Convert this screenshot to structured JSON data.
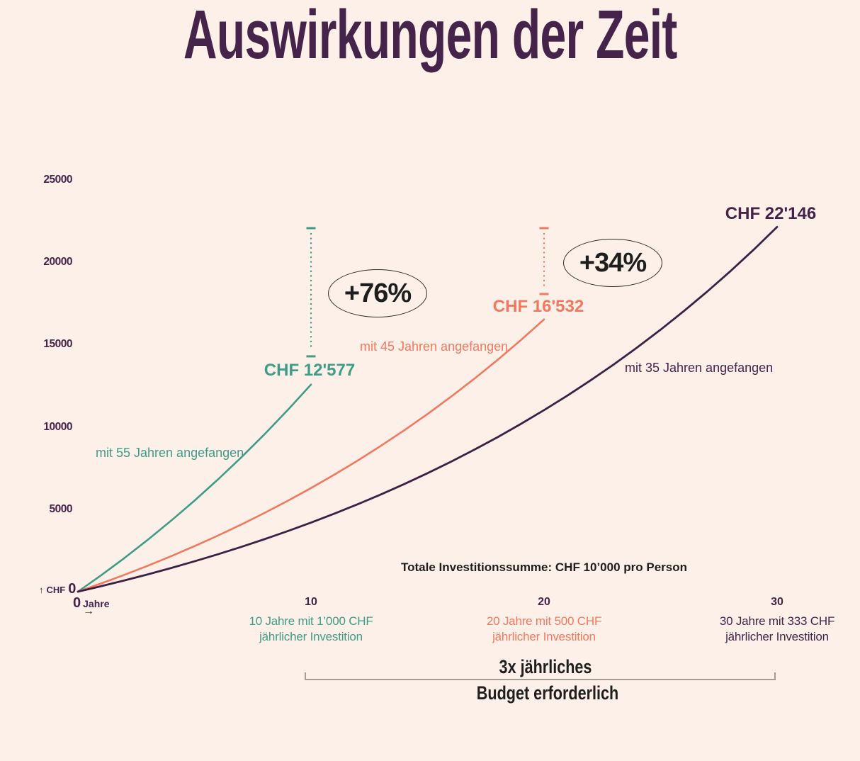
{
  "title": "Auswirkungen der Zeit",
  "colors": {
    "background": "#fdf0e9",
    "purple_text": "#46234a",
    "teal": "#3f9c86",
    "salmon": "#f4785e",
    "curve_purple": "#3e2044",
    "black_text": "#1e1e1c",
    "bracket_gray": "#a59c94"
  },
  "y_axis": {
    "up_arrow": "↑",
    "unit": "CHF",
    "zero": "0",
    "ticks": [
      "25000",
      "20000",
      "15000",
      "10000",
      "5000"
    ]
  },
  "x_axis": {
    "zero": "0",
    "unit": "Jahre",
    "right_arrow": "→",
    "ticks": [
      {
        "value": "10",
        "line1": "10 Jahre mit 1’000 CHF",
        "line2": "jährlicher Investition"
      },
      {
        "value": "20",
        "line1": "20 Jahre mit 500 CHF",
        "line2": "jährlicher Investition"
      },
      {
        "value": "30",
        "line1": "30 Jahre mit 333 CHF",
        "line2": "jährlicher Investition"
      }
    ]
  },
  "note": "Totale Investitionssumme: CHF 10’000 pro Person",
  "badges": [
    {
      "label": "+76%"
    },
    {
      "label": "+34%"
    }
  ],
  "bracket": {
    "line1": "3x jährliches",
    "line2": "Budget erforderlich"
  },
  "chart_data": {
    "type": "line",
    "title": "Auswirkungen der Zeit",
    "xlabel": "Jahre",
    "ylabel": "CHF",
    "xlim": [
      0,
      30
    ],
    "ylim": [
      0,
      25000
    ],
    "x_ticks": [
      0,
      10,
      20,
      30
    ],
    "y_ticks": [
      0,
      5000,
      10000,
      15000,
      20000,
      25000
    ],
    "grid": false,
    "legend": "inline-labels",
    "series": [
      {
        "name": "mit 55 Jahren angefangen",
        "end_label": "CHF 12'577",
        "final_value": 12577,
        "years": 10,
        "annual_investment_chf": 1000,
        "color": "#3f9c86",
        "x": [
          0,
          1,
          2,
          3,
          4,
          5,
          6,
          7,
          8,
          9,
          10
        ],
        "values": [
          0,
          1000,
          2050,
          3153,
          4310,
          5526,
          6802,
          8142,
          9549,
          11027,
          12577
        ]
      },
      {
        "name": "mit 45 Jahren angefangen",
        "end_label": "CHF 16'532",
        "final_value": 16532,
        "years": 20,
        "annual_investment_chf": 500,
        "color": "#f4785e",
        "x": [
          0,
          1,
          2,
          3,
          4,
          5,
          6,
          7,
          8,
          9,
          10,
          11,
          12,
          13,
          14,
          15,
          16,
          17,
          18,
          19,
          20
        ],
        "values": [
          0,
          500,
          1025,
          1576,
          2155,
          2763,
          3401,
          4071,
          4775,
          5513,
          6289,
          7103,
          7958,
          8856,
          9799,
          10789,
          11829,
          12920,
          14066,
          15270,
          16532
        ]
      },
      {
        "name": "mit 35 Jahren angefangen",
        "end_label": "CHF 22'146",
        "final_value": 22146,
        "years": 30,
        "annual_investment_chf": 333,
        "color": "#3e2044",
        "x": [
          0,
          1,
          2,
          3,
          4,
          5,
          6,
          7,
          8,
          9,
          10,
          11,
          12,
          13,
          14,
          15,
          16,
          17,
          18,
          19,
          20,
          21,
          22,
          23,
          24,
          25,
          26,
          27,
          28,
          29,
          30
        ],
        "values": [
          0,
          333,
          683,
          1051,
          1437,
          1842,
          2267,
          2714,
          3183,
          3675,
          4193,
          4736,
          5306,
          5904,
          6533,
          7193,
          7886,
          8613,
          9377,
          10180,
          11022,
          11906,
          12835,
          13810,
          14834,
          15909,
          17038,
          18223,
          19467,
          20774,
          22146
        ]
      }
    ],
    "connectors": [
      {
        "series": 0,
        "at_year": 10,
        "from_chf": 14290,
        "to_chf": 22075
      },
      {
        "series": 1,
        "at_year": 20,
        "from_chf": 18075,
        "to_chf": 22075
      }
    ],
    "annotations": [
      {
        "label": "+76%",
        "meaning": "CHF 12'577 → CHF 22'146",
        "x_year": 12.9,
        "y_chf": 18100
      },
      {
        "label": "+34%",
        "meaning": "CHF 16'532 → CHF 22'146",
        "x_year": 22.9,
        "y_chf": 19950
      }
    ]
  }
}
